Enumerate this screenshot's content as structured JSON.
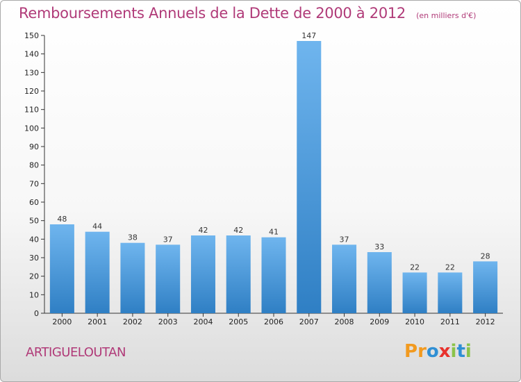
{
  "header": {
    "title": "Remboursements Annuels de la Dette de 2000 à 2012",
    "subtitle": "(en milliers d'€)"
  },
  "footer": {
    "town": "ARTIGUELOUTAN",
    "logo_letters": [
      "P",
      "r",
      "o",
      "x",
      "i",
      "t",
      "i"
    ]
  },
  "colors": {
    "accent": "#b03a78",
    "bar_light": "#6fb5ee",
    "bar_dark": "#2f7fc4",
    "logo": [
      "#f29a1f",
      "#f29a1f",
      "#2f8fd4",
      "#e8322d",
      "#8bc34a",
      "#2f8fd4",
      "#8bc34a"
    ]
  },
  "chart_data": {
    "type": "bar",
    "title": "Remboursements Annuels de la Dette de 2000 à 2012",
    "subtitle": "(en milliers d'€)",
    "categories": [
      "2000",
      "2001",
      "2002",
      "2003",
      "2004",
      "2005",
      "2006",
      "2007",
      "2008",
      "2009",
      "2010",
      "2011",
      "2012"
    ],
    "values": [
      48,
      44,
      38,
      37,
      42,
      42,
      41,
      147,
      37,
      33,
      22,
      22,
      28
    ],
    "xlabel": "",
    "ylabel": "",
    "ylim": [
      0,
      150
    ],
    "yticks": [
      0,
      10,
      20,
      30,
      40,
      50,
      60,
      70,
      80,
      90,
      100,
      110,
      120,
      130,
      140,
      150
    ],
    "grid": false,
    "legend": "none"
  }
}
